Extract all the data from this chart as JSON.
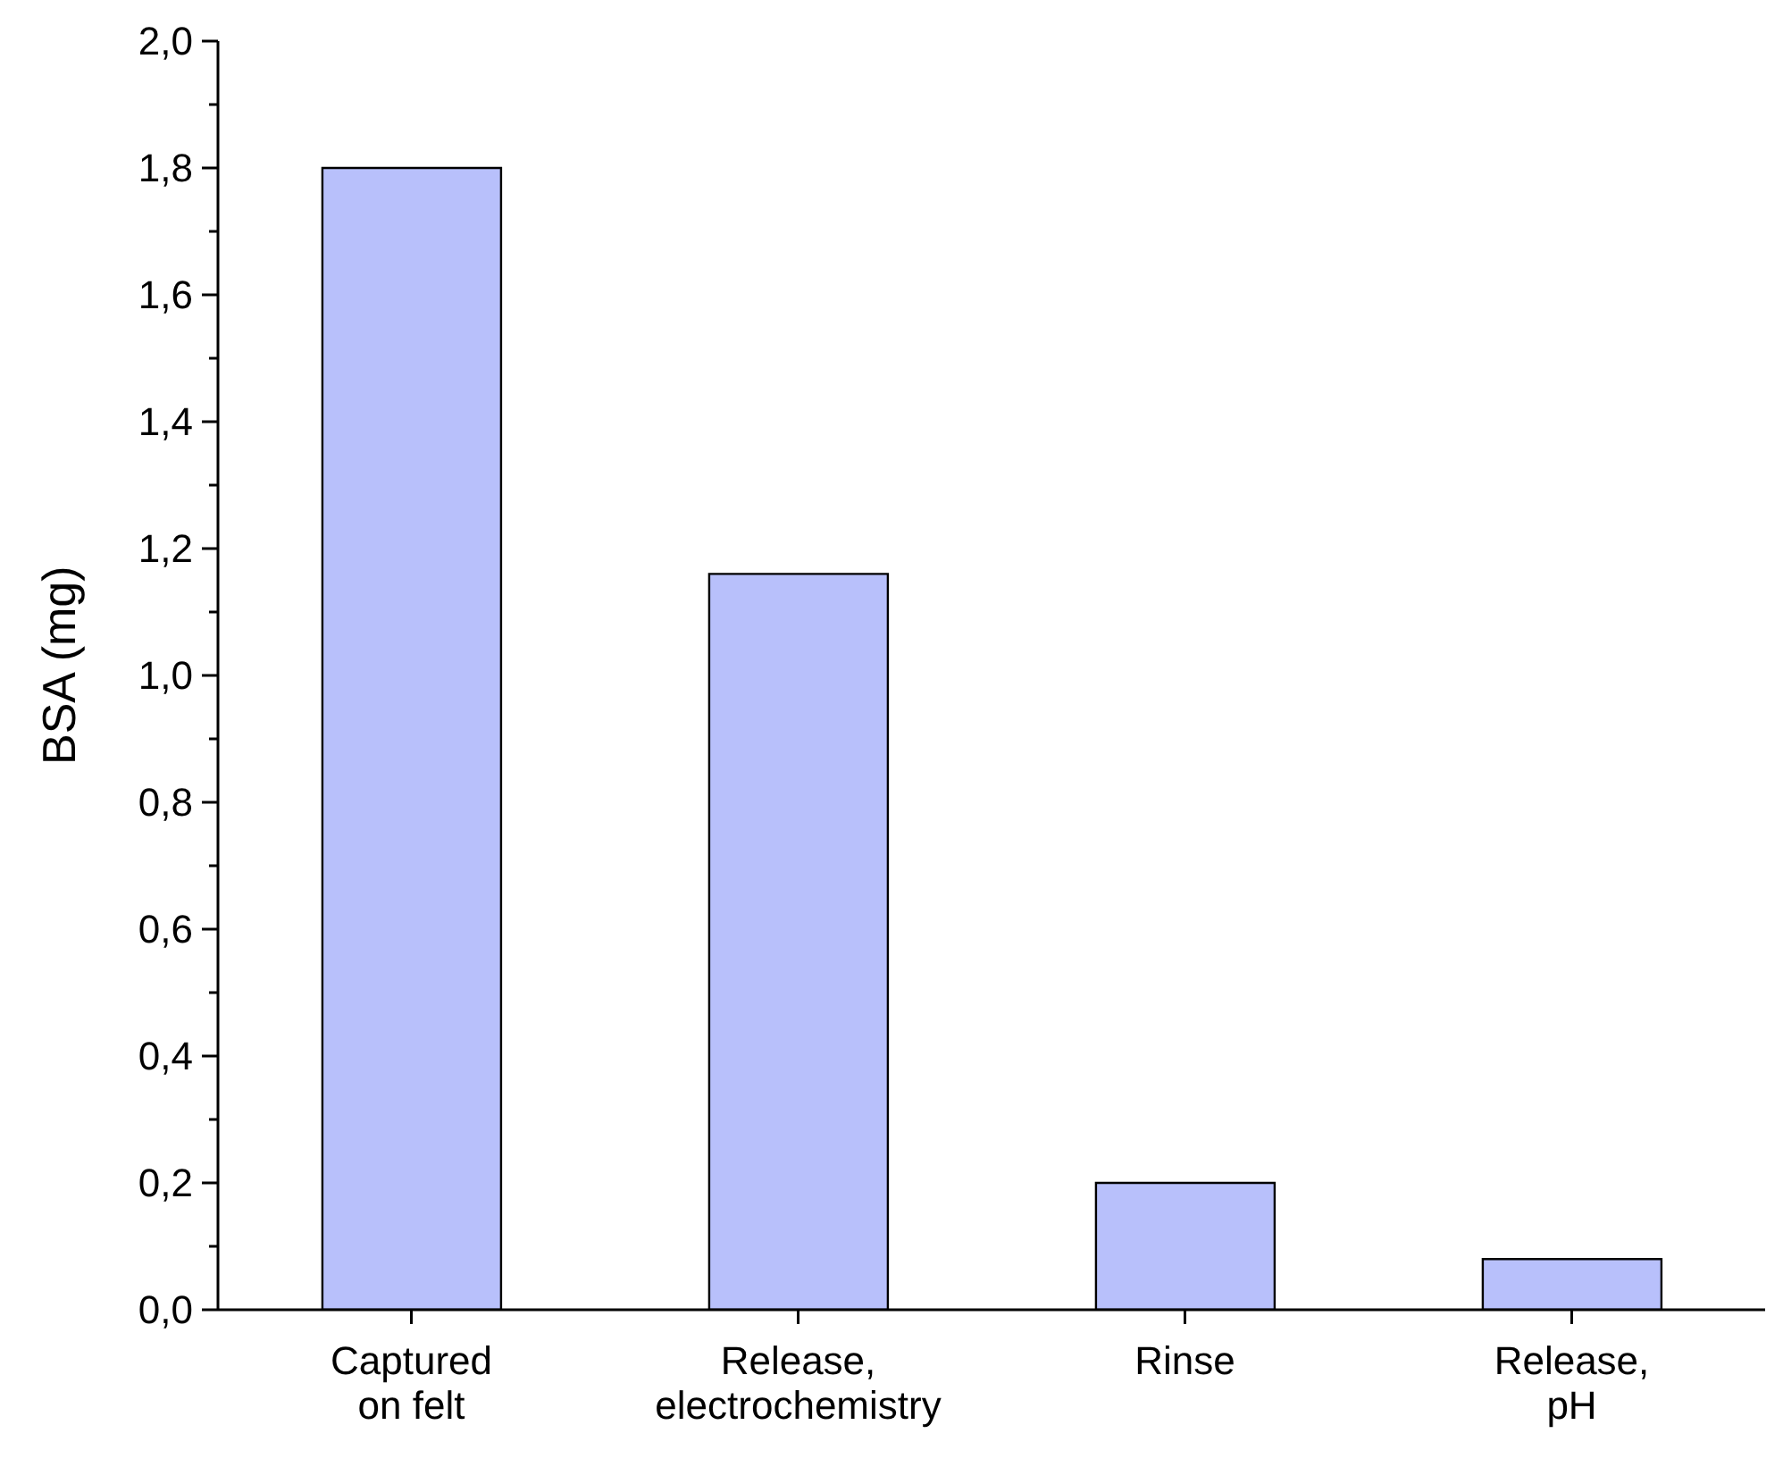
{
  "chart_data": {
    "type": "bar",
    "ylabel": "BSA (mg)",
    "categories": [
      "Captured\non felt",
      "Release,\nelectrochemistry",
      "Rinse",
      "Release,\npH"
    ],
    "values": [
      1.8,
      1.16,
      0.2,
      0.08
    ],
    "color": "#b8c0fb",
    "ylim": [
      0,
      2
    ],
    "yticks": [
      {
        "value": 0,
        "label": "0,0"
      },
      {
        "value": 0.1,
        "label": null
      },
      {
        "value": 0.2,
        "label": "0,2"
      },
      {
        "value": 0.3,
        "label": null
      },
      {
        "value": 0.4,
        "label": "0,4"
      },
      {
        "value": 0.5,
        "label": null
      },
      {
        "value": 0.6,
        "label": "0,6"
      },
      {
        "value": 0.7,
        "label": null
      },
      {
        "value": 0.8,
        "label": "0,8"
      },
      {
        "value": 0.9,
        "label": null
      },
      {
        "value": 1.0,
        "label": "1,0"
      },
      {
        "value": 1.1,
        "label": null
      },
      {
        "value": 1.2,
        "label": "1,2"
      },
      {
        "value": 1.3,
        "label": null
      },
      {
        "value": 1.4,
        "label": "1,4"
      },
      {
        "value": 1.5,
        "label": null
      },
      {
        "value": 1.6,
        "label": "1,6"
      },
      {
        "value": 1.7,
        "label": null
      },
      {
        "value": 1.8,
        "label": "1,8"
      },
      {
        "value": 1.9,
        "label": null
      },
      {
        "value": 2.0,
        "label": "2,0"
      }
    ],
    "grid": false
  }
}
